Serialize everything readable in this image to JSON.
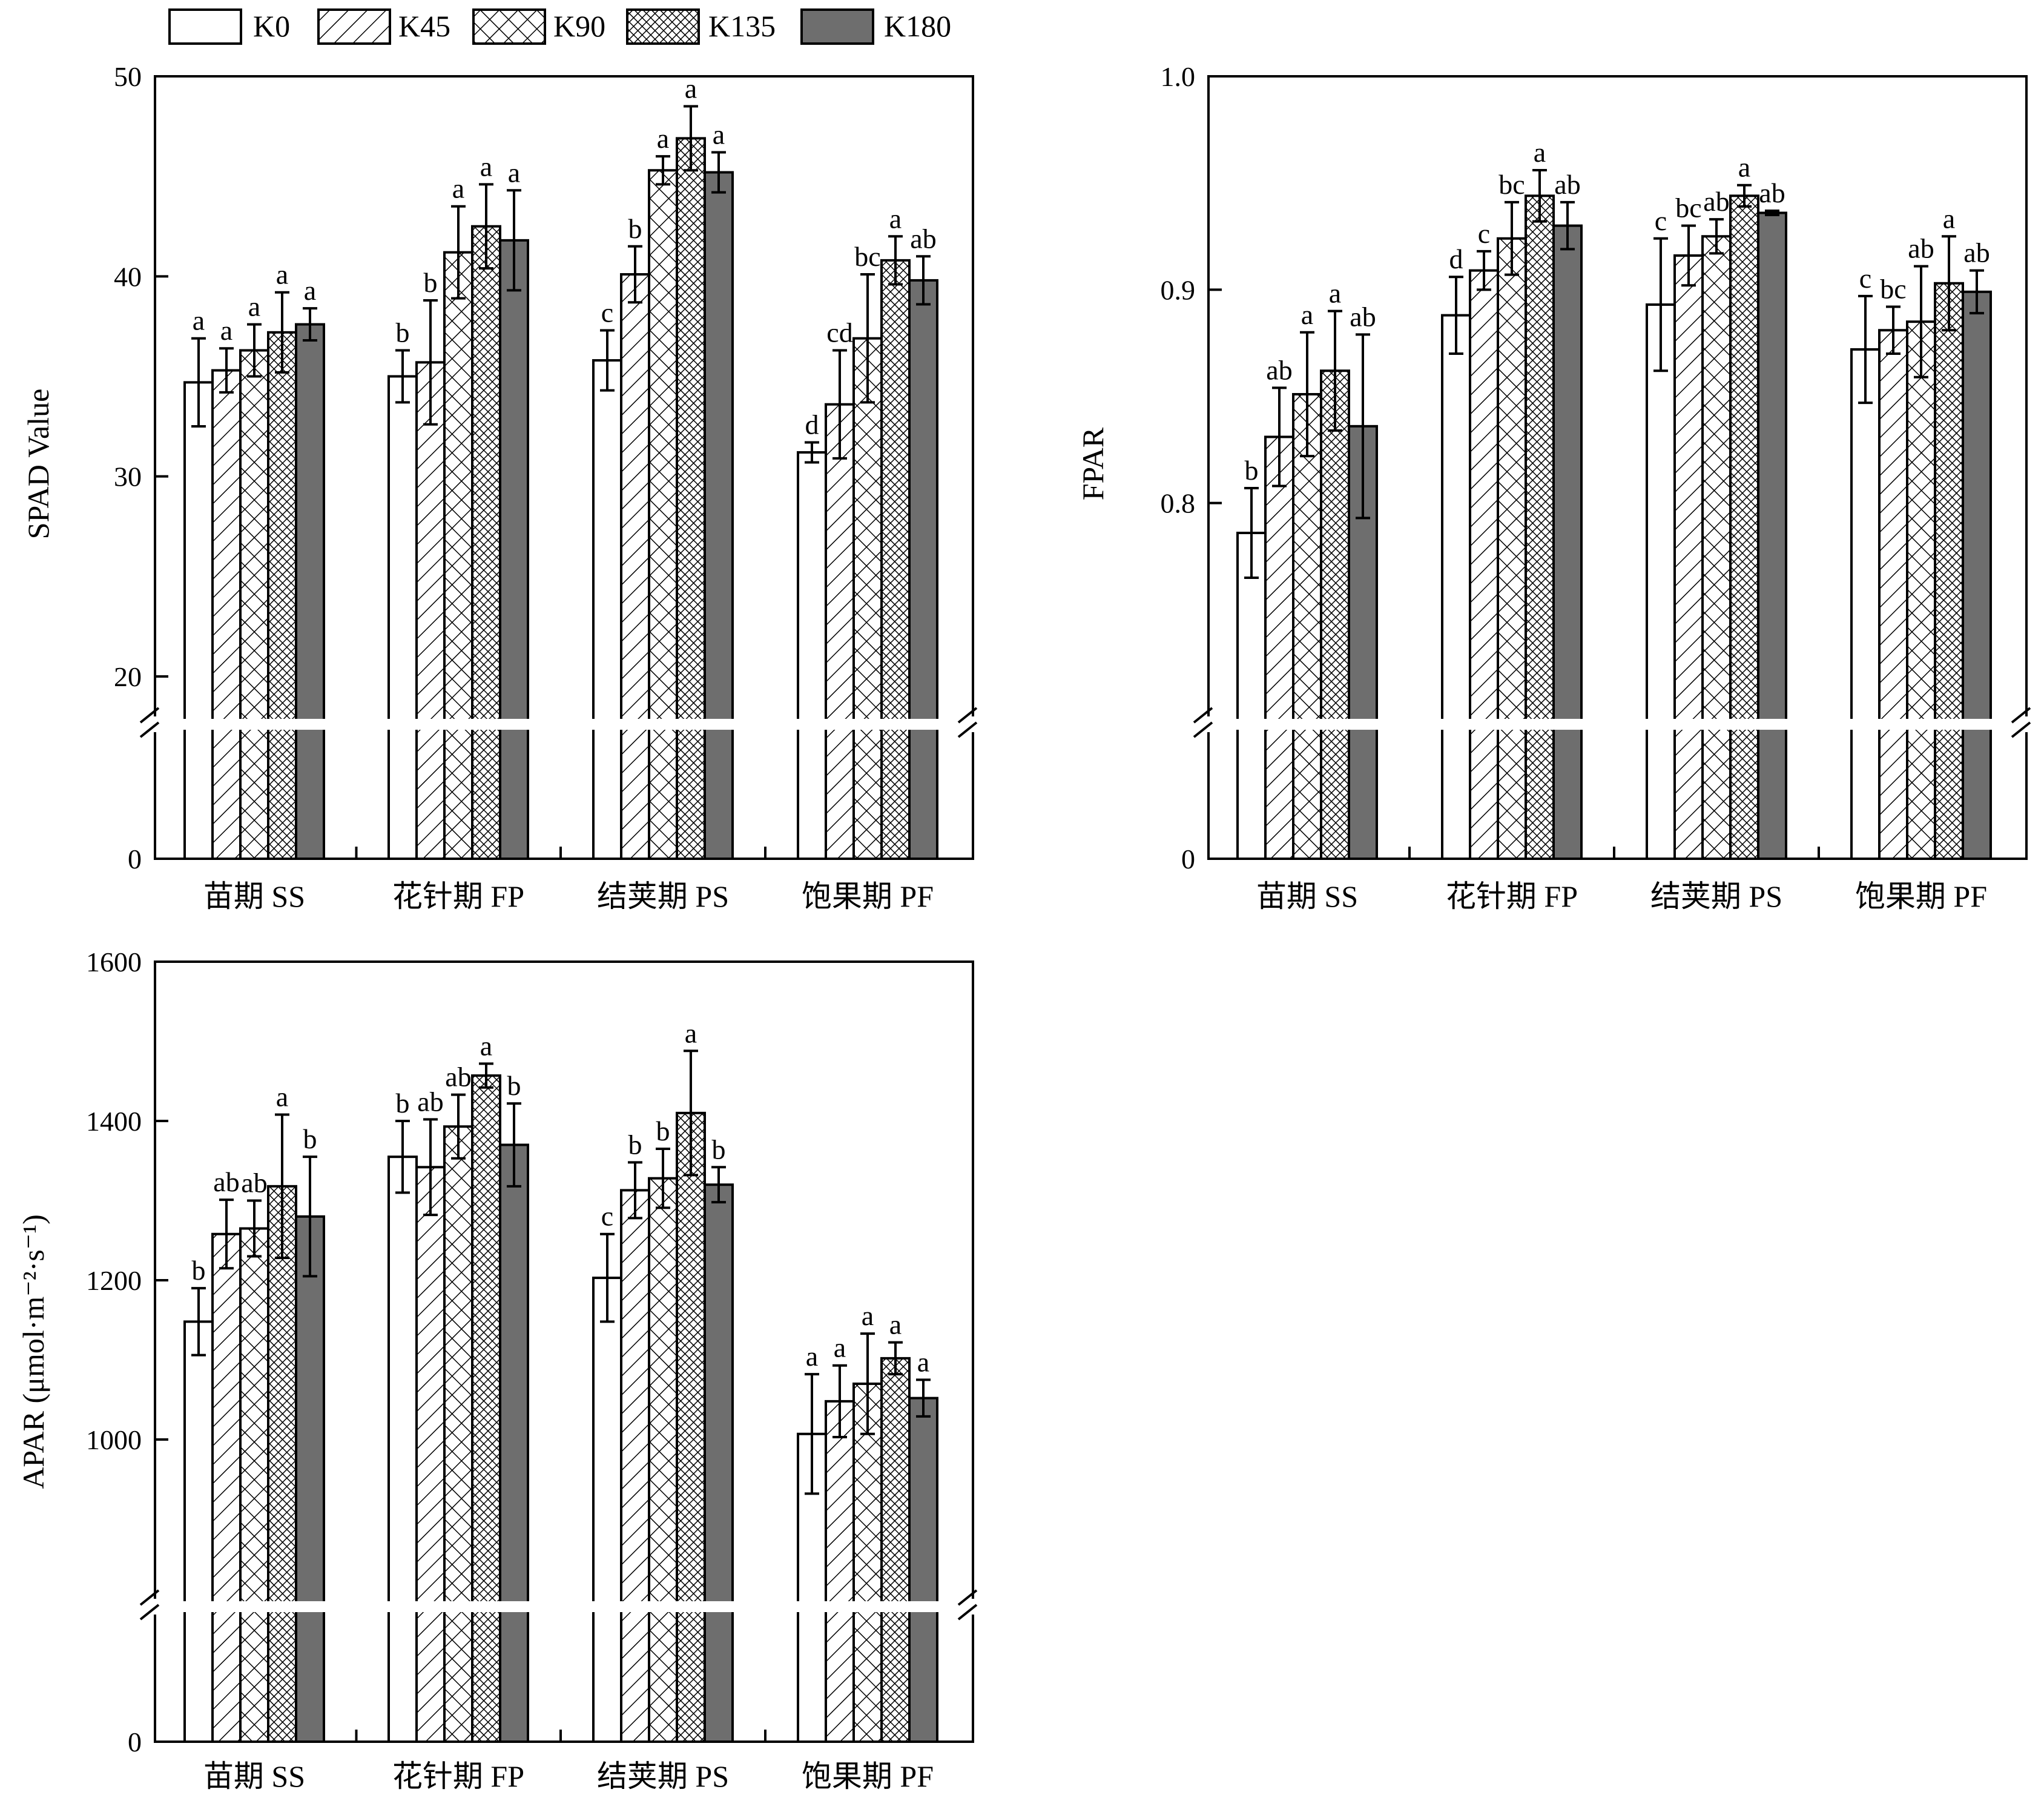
{
  "legend": {
    "items": [
      {
        "label": "K0",
        "pattern": "empty"
      },
      {
        "label": "K45",
        "pattern": "diagonal"
      },
      {
        "label": "K90",
        "pattern": "crosshatch"
      },
      {
        "label": "K135",
        "pattern": "dense-crosshatch"
      },
      {
        "label": "K180",
        "pattern": "solid-gray"
      }
    ]
  },
  "colors": {
    "solid_gray": "#6e6e6e",
    "outline": "#000000",
    "background": "#ffffff"
  },
  "chart_data": [
    {
      "type": "bar",
      "ylabel": "SPAD Value",
      "ylim": [
        18,
        50
      ],
      "break": {
        "lower_tick": "0"
      },
      "yticks": [
        "50",
        "40",
        "30",
        "20"
      ],
      "categories": [
        "苗期 SS",
        "花针期 FP",
        "结荚期 PS",
        "饱果期 PF"
      ],
      "series": [
        {
          "name": "K0",
          "values": [
            34.7,
            35.0,
            35.8,
            31.2
          ],
          "errors": [
            2.2,
            1.3,
            1.5,
            0.5
          ],
          "letters": [
            "a",
            "b",
            "c",
            "d"
          ]
        },
        {
          "name": "K45",
          "values": [
            35.3,
            35.7,
            40.1,
            33.6
          ],
          "errors": [
            1.1,
            3.1,
            1.4,
            2.7
          ],
          "letters": [
            "a",
            "b",
            "b",
            "cd"
          ]
        },
        {
          "name": "K90",
          "values": [
            36.3,
            41.2,
            45.3,
            36.9
          ],
          "errors": [
            1.3,
            2.3,
            0.7,
            3.2
          ],
          "letters": [
            "a",
            "a",
            "a",
            "bc"
          ]
        },
        {
          "name": "K135",
          "values": [
            37.2,
            42.5,
            46.9,
            40.8
          ],
          "errors": [
            2.0,
            2.1,
            1.6,
            1.2
          ],
          "letters": [
            "a",
            "a",
            "a",
            "a"
          ]
        },
        {
          "name": "K180",
          "values": [
            37.6,
            41.8,
            45.2,
            39.8
          ],
          "errors": [
            0.8,
            2.5,
            1.0,
            1.2
          ],
          "letters": [
            "a",
            "a",
            "a",
            "ab"
          ]
        }
      ]
    },
    {
      "type": "bar",
      "ylabel": "FPAR",
      "ylim": [
        0.7,
        1.0
      ],
      "break": {
        "lower_tick": "0"
      },
      "yticks": [
        "1.0",
        "0.9",
        "0.8"
      ],
      "categories": [
        "苗期 SS",
        "花针期 FP",
        "结荚期 PS",
        "饱果期 PF"
      ],
      "series": [
        {
          "name": "K0",
          "values": [
            0.786,
            0.888,
            0.893,
            0.872
          ],
          "errors": [
            0.021,
            0.018,
            0.031,
            0.025
          ],
          "letters": [
            "b",
            "d",
            "c",
            "c"
          ]
        },
        {
          "name": "K45",
          "values": [
            0.831,
            0.909,
            0.916,
            0.881
          ],
          "errors": [
            0.023,
            0.009,
            0.014,
            0.011
          ],
          "letters": [
            "ab",
            "c",
            "bc",
            "bc"
          ]
        },
        {
          "name": "K90",
          "values": [
            0.851,
            0.924,
            0.925,
            0.885
          ],
          "errors": [
            0.029,
            0.017,
            0.008,
            0.026
          ],
          "letters": [
            "a",
            "bc",
            "ab",
            "ab"
          ]
        },
        {
          "name": "K135",
          "values": [
            0.862,
            0.944,
            0.944,
            0.903
          ],
          "errors": [
            0.028,
            0.012,
            0.005,
            0.022
          ],
          "letters": [
            "a",
            "a",
            "a",
            "a"
          ]
        },
        {
          "name": "K180",
          "values": [
            0.836,
            0.93,
            0.936,
            0.899
          ],
          "errors": [
            0.043,
            0.011,
            0.001,
            0.01
          ],
          "letters": [
            "ab",
            "ab",
            "ab",
            "ab"
          ]
        }
      ]
    },
    {
      "type": "bar",
      "ylabel": "APAR (μmol·m⁻²·s⁻¹)",
      "ylim": [
        800,
        1600
      ],
      "break": {
        "lower_tick": "0"
      },
      "yticks": [
        "1600",
        "1400",
        "1200",
        "1000"
      ],
      "categories": [
        "苗期 SS",
        "花针期 FP",
        "结荚期 PS",
        "饱果期 PF"
      ],
      "series": [
        {
          "name": "K0",
          "values": [
            1148,
            1355,
            1203,
            1007
          ],
          "errors": [
            42,
            45,
            55,
            75
          ],
          "letters": [
            "b",
            "b",
            "c",
            "a"
          ]
        },
        {
          "name": "K45",
          "values": [
            1258,
            1342,
            1313,
            1048
          ],
          "errors": [
            43,
            60,
            35,
            45
          ],
          "letters": [
            "ab",
            "ab",
            "b",
            "a"
          ]
        },
        {
          "name": "K90",
          "values": [
            1265,
            1393,
            1328,
            1070
          ],
          "errors": [
            35,
            40,
            37,
            63
          ],
          "letters": [
            "ab",
            "ab",
            "b",
            "a"
          ]
        },
        {
          "name": "K135",
          "values": [
            1318,
            1457,
            1410,
            1102
          ],
          "errors": [
            90,
            15,
            78,
            20
          ],
          "letters": [
            "a",
            "a",
            "a",
            "a"
          ]
        },
        {
          "name": "K180",
          "values": [
            1280,
            1370,
            1320,
            1052
          ],
          "errors": [
            75,
            52,
            22,
            23
          ],
          "letters": [
            "b",
            "b",
            "b",
            "a"
          ]
        }
      ]
    }
  ]
}
